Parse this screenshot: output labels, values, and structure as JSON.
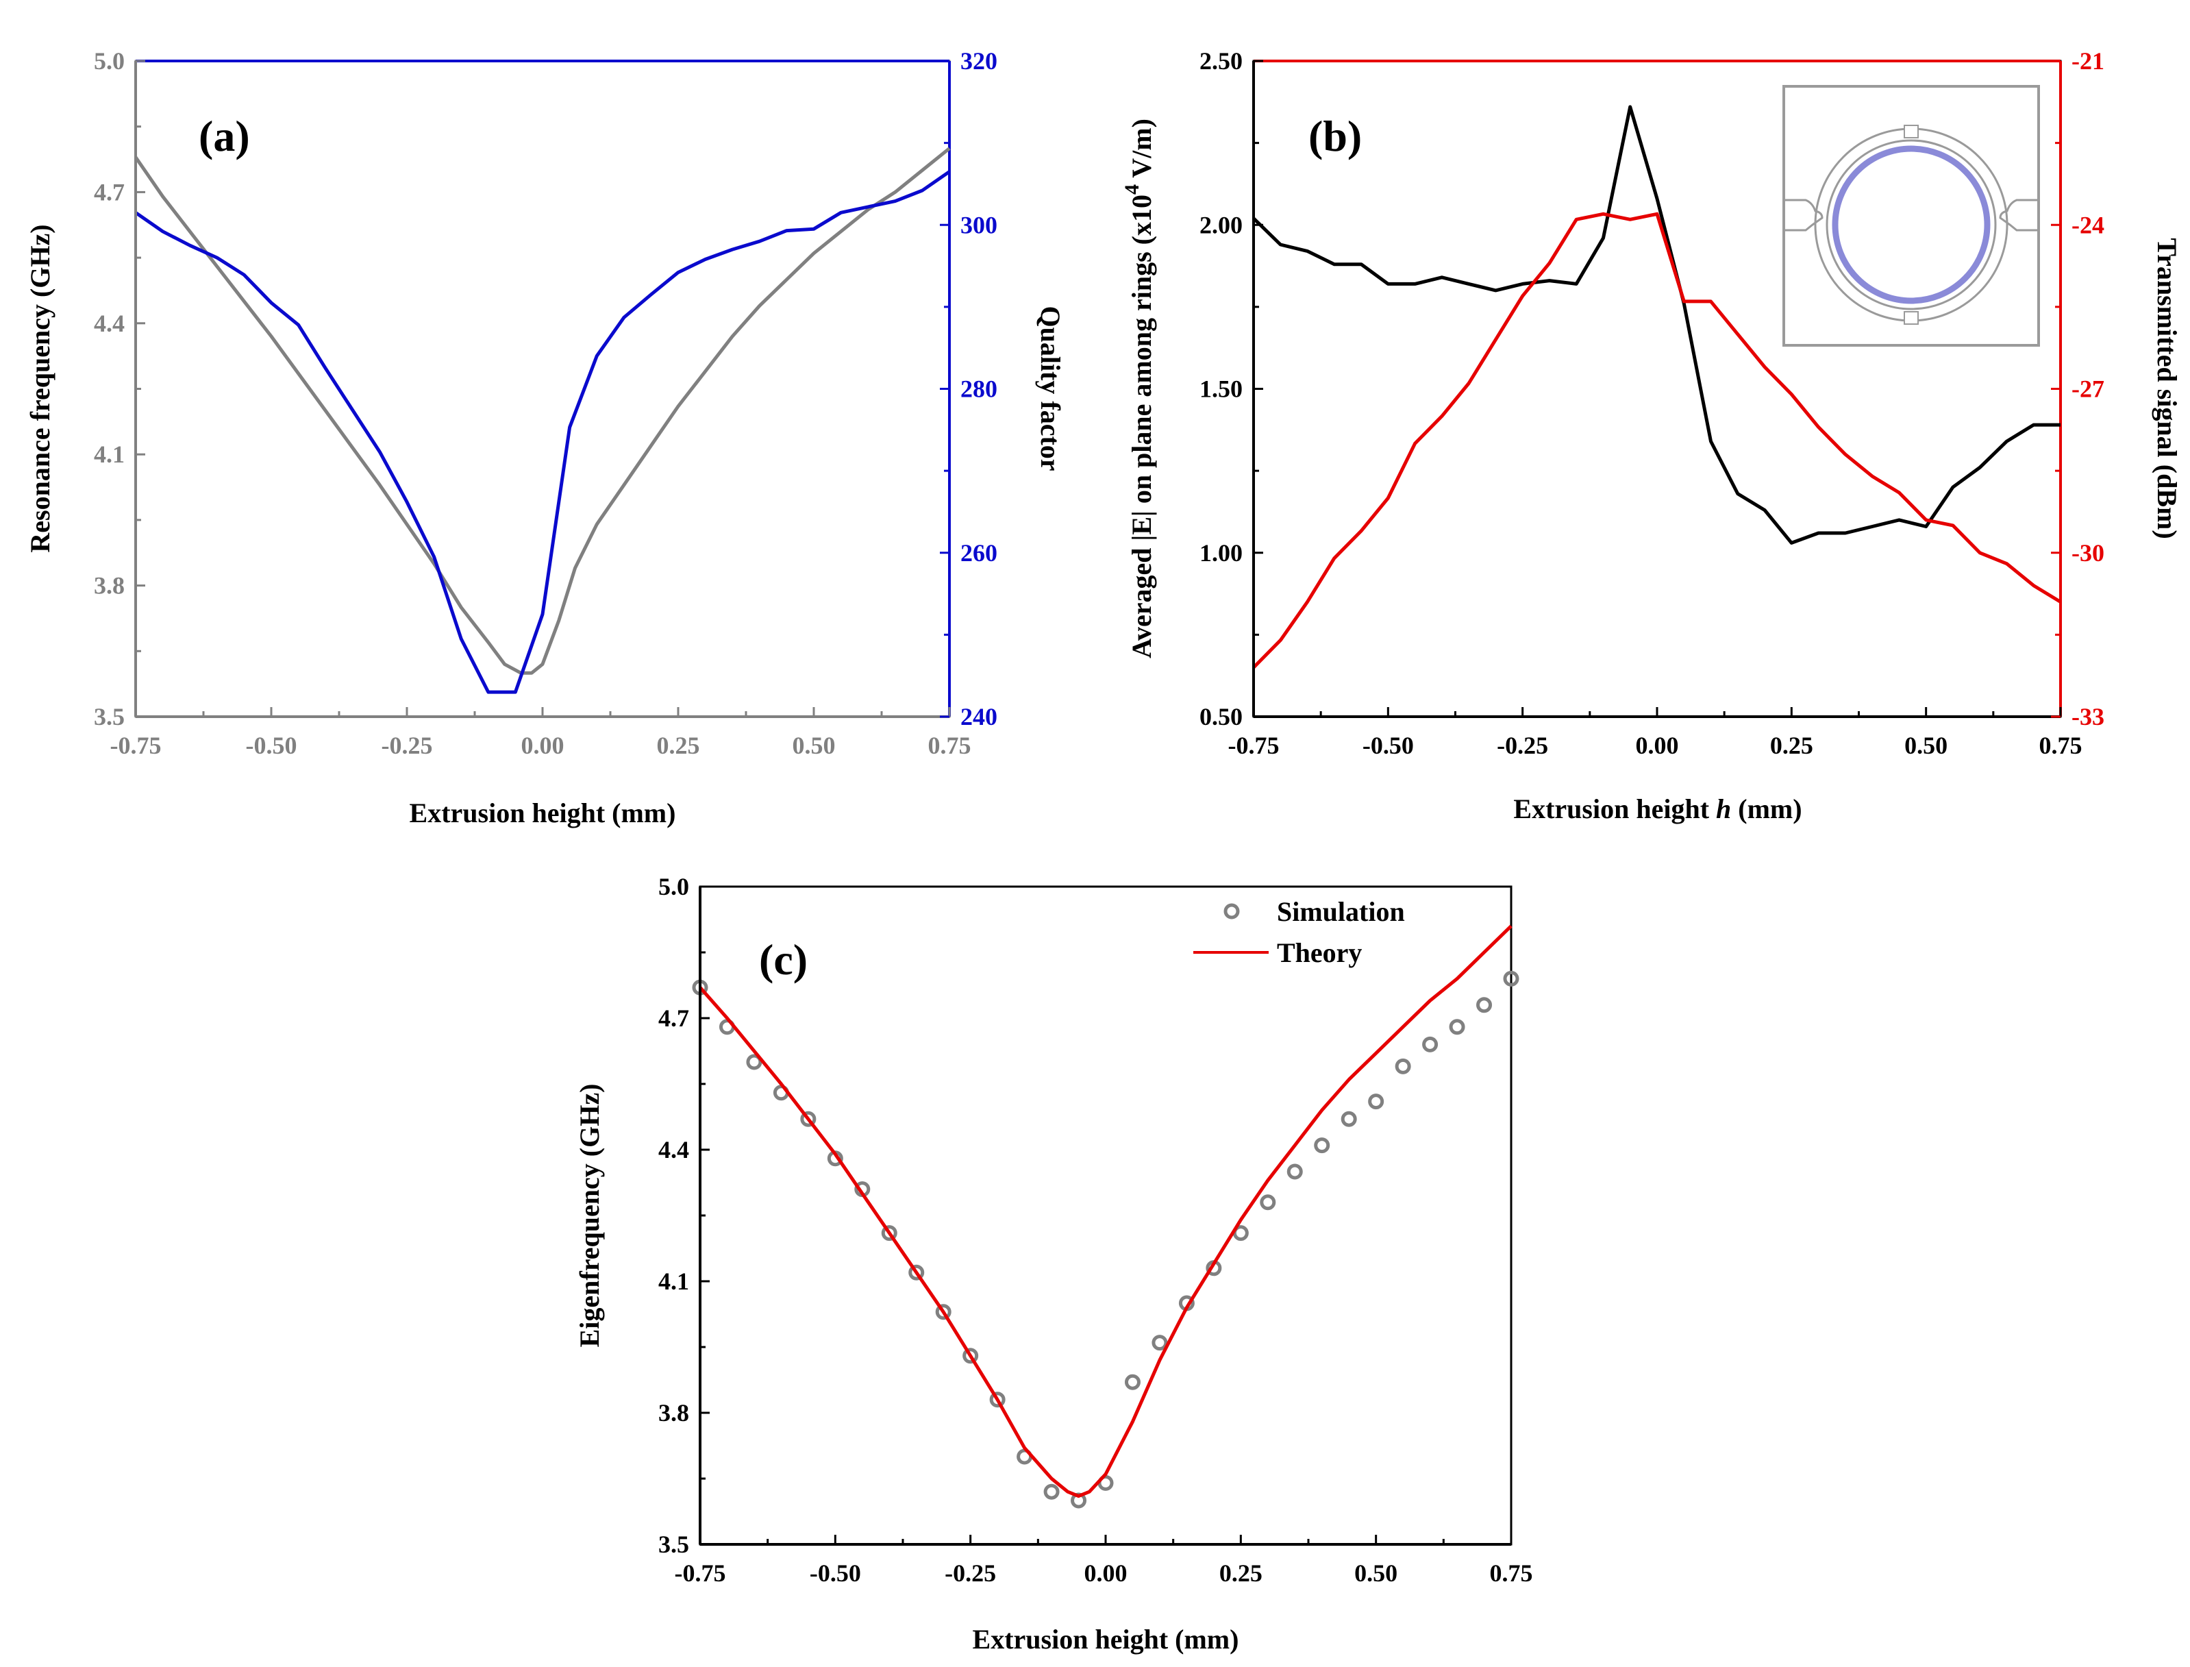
{
  "chart_data": [
    {
      "type": "line",
      "panel_label": "(a)",
      "title": "",
      "xlabel": "Extrusion height (mm)",
      "ylabel": "Resonance frequency (GHz)",
      "ylabel_right": "Quality factor",
      "xlim": [
        -0.75,
        0.75
      ],
      "ylim": [
        3.5,
        5.0
      ],
      "ylim_right": [
        240,
        320
      ],
      "x_ticks": [
        "-0.75",
        "-0.50",
        "-0.25",
        "0.00",
        "0.25",
        "0.50",
        "0.75"
      ],
      "y_ticks": [
        "3.5",
        "3.8",
        "4.1",
        "4.4",
        "4.7",
        "5.0"
      ],
      "y_ticks_right": [
        "240",
        "260",
        "280",
        "300",
        "320"
      ],
      "colors": {
        "left": "#808080",
        "right": "#0a0acd"
      },
      "series": [
        {
          "name": "Resonance frequency",
          "axis": "left",
          "color": "#808080",
          "x": [
            -0.75,
            -0.7,
            -0.6,
            -0.5,
            -0.4,
            -0.3,
            -0.2,
            -0.15,
            -0.1,
            -0.07,
            -0.04,
            -0.02,
            0.0,
            0.03,
            0.06,
            0.1,
            0.15,
            0.2,
            0.25,
            0.3,
            0.35,
            0.4,
            0.45,
            0.5,
            0.55,
            0.6,
            0.65,
            0.7,
            0.75
          ],
          "values": [
            4.78,
            4.69,
            4.53,
            4.37,
            4.2,
            4.03,
            3.85,
            3.75,
            3.67,
            3.62,
            3.6,
            3.6,
            3.62,
            3.72,
            3.84,
            3.94,
            4.03,
            4.12,
            4.21,
            4.29,
            4.37,
            4.44,
            4.5,
            4.56,
            4.61,
            4.66,
            4.7,
            4.75,
            4.8
          ]
        },
        {
          "name": "Quality factor",
          "axis": "right",
          "color": "#0a0acd",
          "x": [
            -0.75,
            -0.7,
            -0.65,
            -0.6,
            -0.55,
            -0.5,
            -0.45,
            -0.4,
            -0.35,
            -0.3,
            -0.25,
            -0.2,
            -0.15,
            -0.1,
            -0.05,
            0.0,
            0.05,
            0.1,
            0.15,
            0.2,
            0.25,
            0.3,
            0.35,
            0.4,
            0.45,
            0.5,
            0.55,
            0.6,
            0.65,
            0.7,
            0.75
          ],
          "values": [
            301.5,
            299.2,
            297.5,
            296.0,
            293.9,
            290.5,
            287.8,
            282.5,
            277.4,
            272.3,
            266.2,
            259.5,
            249.5,
            243.0,
            243.0,
            252.5,
            275.3,
            284.0,
            288.7,
            291.5,
            294.2,
            295.8,
            297.0,
            298.0,
            299.3,
            299.5,
            301.5,
            302.2,
            302.9,
            304.2,
            306.5
          ]
        }
      ]
    },
    {
      "type": "line",
      "panel_label": "(b)",
      "title": "",
      "xlabel": "Extrusion height h (mm)",
      "xlabel_parts": [
        "Extrusion height ",
        "h",
        " (mm)"
      ],
      "ylabel": "Averaged |E| on plane among rings (x10^4 V/m)",
      "ylabel_parts": [
        "Averaged |E| on plane among rings (x10",
        "4",
        " V/m)"
      ],
      "ylabel_right": "Transmitted signal (dBm)",
      "xlim": [
        -0.75,
        0.75
      ],
      "ylim": [
        0.5,
        2.5
      ],
      "ylim_right": [
        -33,
        -21
      ],
      "x_ticks": [
        "-0.75",
        "-0.50",
        "-0.25",
        "0.00",
        "0.25",
        "0.50",
        "0.75"
      ],
      "y_ticks": [
        "0.50",
        "1.00",
        "1.50",
        "2.00",
        "2.50"
      ],
      "y_ticks_right": [
        "-33",
        "-30",
        "-27",
        "-24",
        "-21"
      ],
      "colors": {
        "left": "#000000",
        "right": "#e60000"
      },
      "series": [
        {
          "name": "Averaged |E|",
          "axis": "left",
          "color": "#000000",
          "x": [
            -0.75,
            -0.7,
            -0.65,
            -0.6,
            -0.55,
            -0.5,
            -0.45,
            -0.4,
            -0.35,
            -0.3,
            -0.25,
            -0.2,
            -0.15,
            -0.1,
            -0.05,
            0.0,
            0.05,
            0.1,
            0.15,
            0.2,
            0.25,
            0.3,
            0.35,
            0.4,
            0.45,
            0.5,
            0.55,
            0.6,
            0.65,
            0.7,
            0.75
          ],
          "values": [
            2.02,
            1.94,
            1.92,
            1.88,
            1.88,
            1.82,
            1.82,
            1.84,
            1.82,
            1.8,
            1.82,
            1.83,
            1.82,
            1.96,
            2.36,
            2.08,
            1.76,
            1.34,
            1.18,
            1.13,
            1.03,
            1.06,
            1.06,
            1.08,
            1.1,
            1.08,
            1.2,
            1.26,
            1.34,
            1.39,
            1.39
          ]
        },
        {
          "name": "Transmitted signal",
          "axis": "right",
          "color": "#e60000",
          "x": [
            -0.75,
            -0.7,
            -0.65,
            -0.6,
            -0.55,
            -0.5,
            -0.45,
            -0.4,
            -0.35,
            -0.3,
            -0.25,
            -0.2,
            -0.15,
            -0.1,
            -0.05,
            0.0,
            0.05,
            0.1,
            0.15,
            0.2,
            0.25,
            0.3,
            0.35,
            0.4,
            0.45,
            0.5,
            0.55,
            0.6,
            0.65,
            0.7,
            0.75
          ],
          "values": [
            -32.1,
            -31.6,
            -30.9,
            -30.1,
            -29.6,
            -29.0,
            -28.0,
            -27.5,
            -26.9,
            -26.1,
            -25.3,
            -24.7,
            -23.9,
            -23.8,
            -23.9,
            -23.8,
            -25.4,
            -25.4,
            -26.0,
            -26.6,
            -27.1,
            -27.7,
            -28.2,
            -28.6,
            -28.9,
            -29.4,
            -29.5,
            -30.0,
            -30.2,
            -30.6,
            -30.9
          ]
        }
      ]
    },
    {
      "type": "scatter",
      "panel_label": "(c)",
      "title": "",
      "xlabel": "Extrusion height (mm)",
      "ylabel": "Eigenfrequency (GHz)",
      "xlim": [
        -0.75,
        0.75
      ],
      "ylim": [
        3.5,
        5.0
      ],
      "x_ticks": [
        "-0.75",
        "-0.50",
        "-0.25",
        "0.00",
        "0.25",
        "0.50",
        "0.75"
      ],
      "y_ticks": [
        "3.5",
        "3.8",
        "4.1",
        "4.4",
        "4.7",
        "5.0"
      ],
      "legend_position": "top-right",
      "series": [
        {
          "name": "Simulation",
          "kind": "markers",
          "color": "#808080",
          "x": [
            -0.75,
            -0.7,
            -0.65,
            -0.6,
            -0.55,
            -0.5,
            -0.45,
            -0.4,
            -0.35,
            -0.3,
            -0.25,
            -0.2,
            -0.15,
            -0.1,
            -0.05,
            0.0,
            0.05,
            0.1,
            0.15,
            0.2,
            0.25,
            0.3,
            0.35,
            0.4,
            0.45,
            0.5,
            0.55,
            0.6,
            0.65,
            0.7,
            0.75
          ],
          "values": [
            4.77,
            4.68,
            4.6,
            4.53,
            4.47,
            4.38,
            4.31,
            4.21,
            4.12,
            4.03,
            3.93,
            3.83,
            3.7,
            3.62,
            3.6,
            3.64,
            3.87,
            3.96,
            4.05,
            4.13,
            4.21,
            4.28,
            4.35,
            4.41,
            4.47,
            4.51,
            4.59,
            4.64,
            4.68,
            4.73,
            4.79
          ]
        },
        {
          "name": "Theory",
          "kind": "line",
          "color": "#e60000",
          "x": [
            -0.75,
            -0.7,
            -0.6,
            -0.5,
            -0.4,
            -0.3,
            -0.2,
            -0.15,
            -0.1,
            -0.07,
            -0.05,
            -0.03,
            0.0,
            0.05,
            0.1,
            0.15,
            0.2,
            0.25,
            0.3,
            0.35,
            0.4,
            0.45,
            0.5,
            0.55,
            0.6,
            0.65,
            0.7,
            0.75
          ],
          "values": [
            4.77,
            4.7,
            4.55,
            4.39,
            4.21,
            4.03,
            3.83,
            3.72,
            3.65,
            3.62,
            3.61,
            3.62,
            3.66,
            3.78,
            3.92,
            4.04,
            4.14,
            4.24,
            4.33,
            4.41,
            4.49,
            4.56,
            4.62,
            4.68,
            4.74,
            4.79,
            4.85,
            4.91
          ]
        }
      ]
    }
  ]
}
